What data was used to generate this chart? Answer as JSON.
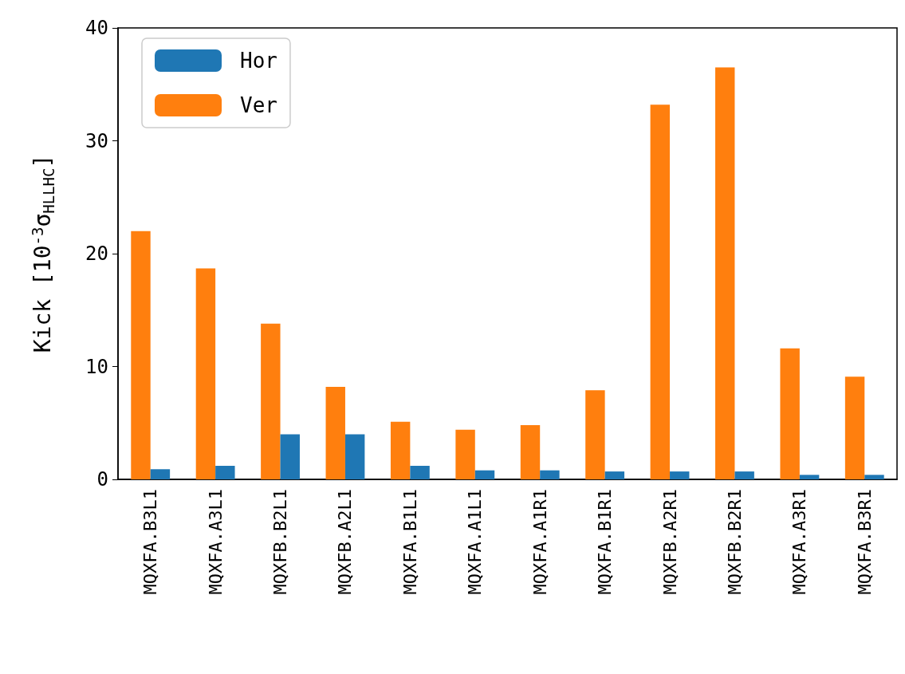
{
  "chart_data": {
    "type": "bar",
    "ylabel": "Kick [10$^{-3}$σ$_{HLLHC}$]",
    "categories": [
      "MQXFA.B3L1",
      "MQXFA.A3L1",
      "MQXFB.B2L1",
      "MQXFB.A2L1",
      "MQXFA.B1L1",
      "MQXFA.A1L1",
      "MQXFA.A1R1",
      "MQXFA.B1R1",
      "MQXFB.A2R1",
      "MQXFB.B2R1",
      "MQXFA.A3R1",
      "MQXFA.B3R1"
    ],
    "series": [
      {
        "name": "Hor",
        "color": "#1f77b4",
        "values": [
          0.9,
          1.2,
          4.0,
          4.0,
          1.2,
          0.8,
          0.8,
          0.7,
          0.7,
          0.7,
          0.4,
          0.4
        ]
      },
      {
        "name": "Ver",
        "color": "#ff7f0e",
        "values": [
          22.0,
          18.7,
          13.8,
          8.2,
          5.1,
          4.4,
          4.8,
          7.9,
          33.2,
          36.5,
          11.6,
          9.1
        ]
      }
    ],
    "ylim": [
      0,
      40
    ],
    "yticks": [
      0,
      10,
      20,
      30,
      40
    ],
    "grid": false,
    "legend": "top left"
  }
}
